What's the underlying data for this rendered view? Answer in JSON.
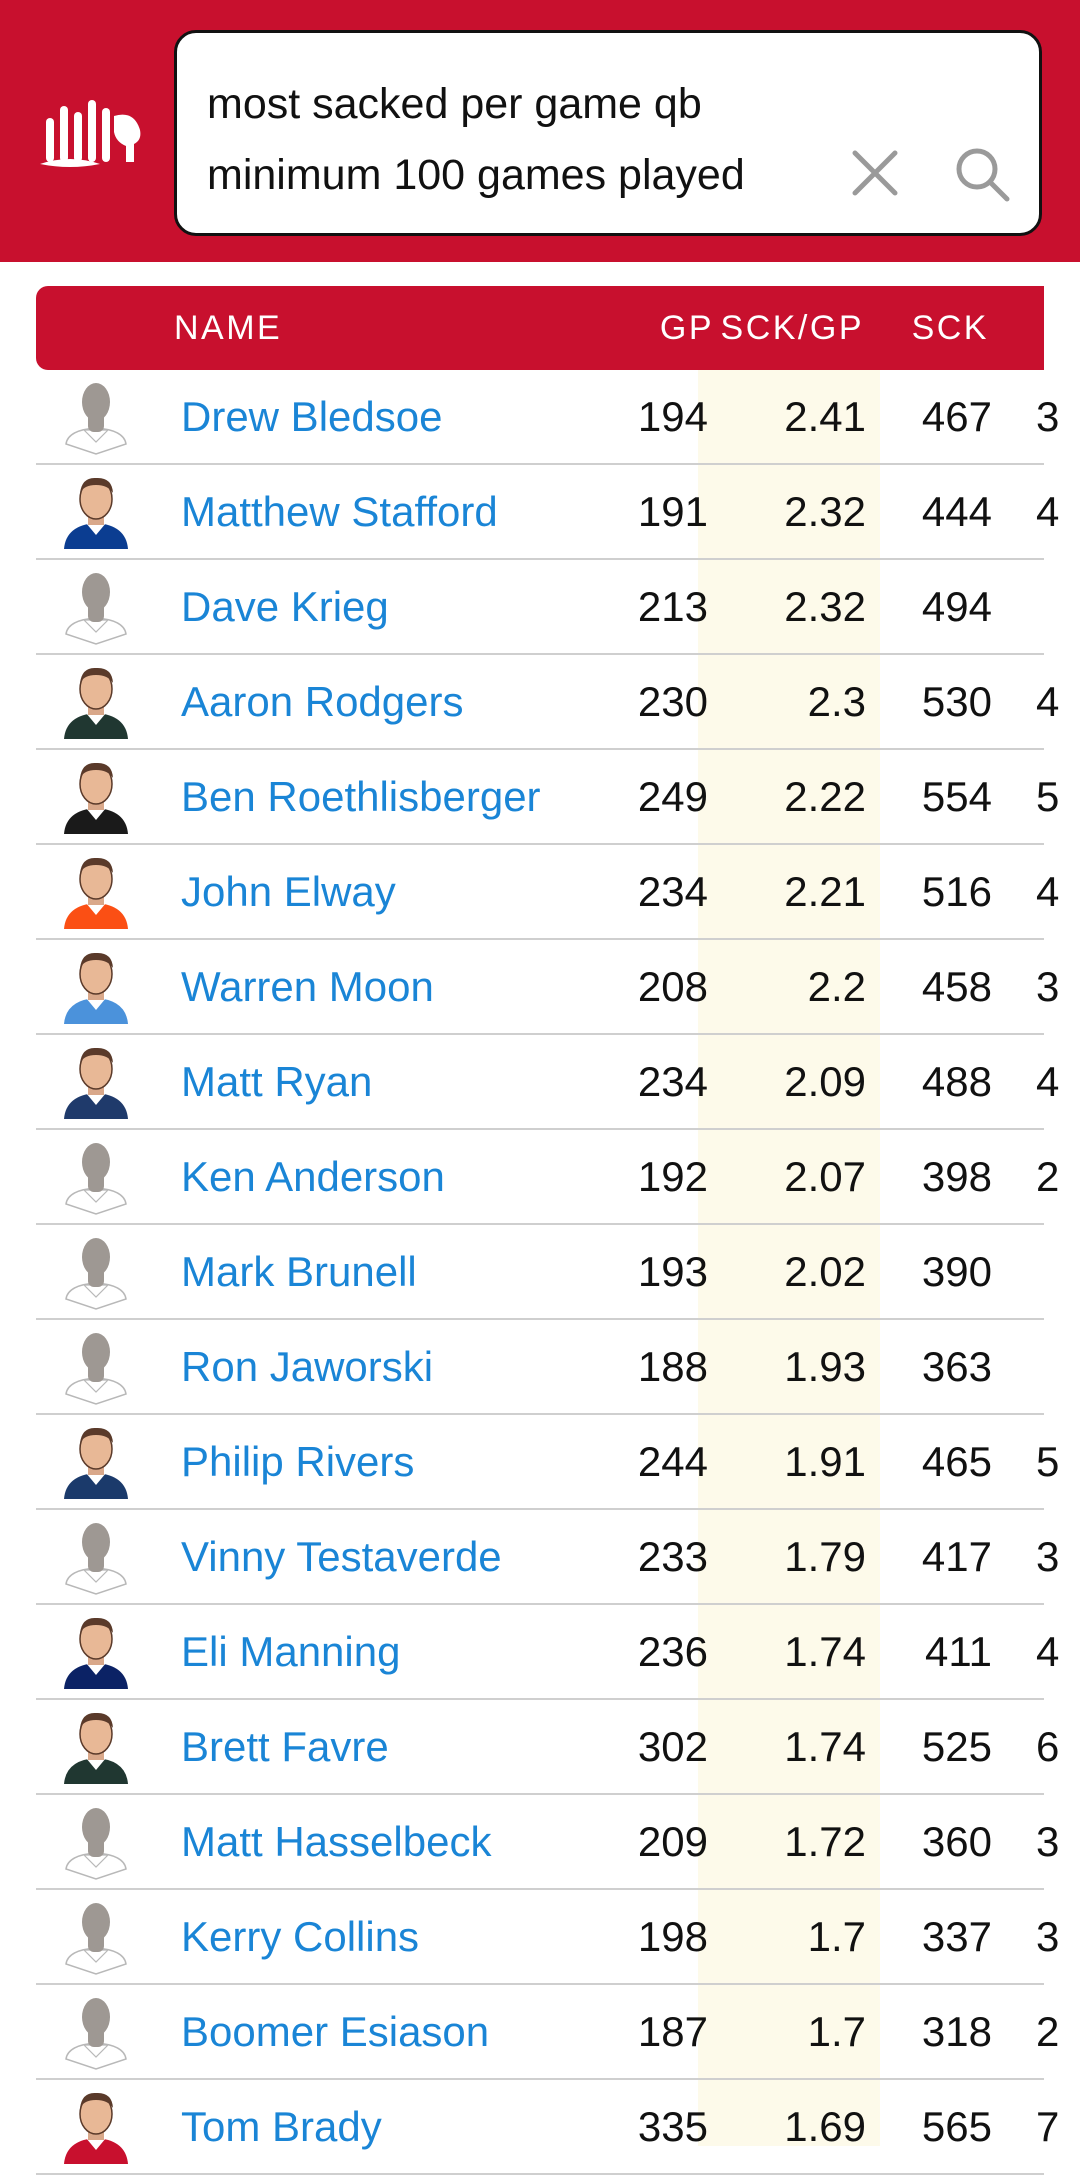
{
  "search": {
    "query": "most sacked per game qb\nminimum 100 games played"
  },
  "icons": {
    "logo": "statmuse-logo",
    "clear": "close-icon",
    "search": "search-icon"
  },
  "colors": {
    "brand": "#c8102e",
    "link": "#1a85d6",
    "highlight_column": "#fdfaea"
  },
  "table": {
    "columns": {
      "name": "NAME",
      "gp": "GP",
      "sck_gp": "SCK/GP",
      "sck": "SCK"
    },
    "rows": [
      {
        "name": "Drew Bledsoe",
        "gp": "194",
        "sck_gp": "2.41",
        "sck": "467",
        "extra": "3",
        "avatar": "silhouette"
      },
      {
        "name": "Matthew Stafford",
        "gp": "191",
        "sck_gp": "2.32",
        "sck": "444",
        "extra": "4",
        "avatar": "photo",
        "jersey": "#0b3d91"
      },
      {
        "name": "Dave Krieg",
        "gp": "213",
        "sck_gp": "2.32",
        "sck": "494",
        "extra": "",
        "avatar": "silhouette"
      },
      {
        "name": "Aaron Rodgers",
        "gp": "230",
        "sck_gp": "2.3",
        "sck": "530",
        "extra": "4",
        "avatar": "photo",
        "jersey": "#203731"
      },
      {
        "name": "Ben Roethlisberger",
        "gp": "249",
        "sck_gp": "2.22",
        "sck": "554",
        "extra": "5",
        "avatar": "photo",
        "jersey": "#1a1a1a"
      },
      {
        "name": "John Elway",
        "gp": "234",
        "sck_gp": "2.21",
        "sck": "516",
        "extra": "4",
        "avatar": "photo",
        "jersey": "#fb4f14"
      },
      {
        "name": "Warren Moon",
        "gp": "208",
        "sck_gp": "2.2",
        "sck": "458",
        "extra": "3",
        "avatar": "photo",
        "jersey": "#4b92db"
      },
      {
        "name": "Matt Ryan",
        "gp": "234",
        "sck_gp": "2.09",
        "sck": "488",
        "extra": "4",
        "avatar": "photo",
        "jersey": "#1f3a6b"
      },
      {
        "name": "Ken Anderson",
        "gp": "192",
        "sck_gp": "2.07",
        "sck": "398",
        "extra": "2",
        "avatar": "silhouette"
      },
      {
        "name": "Mark Brunell",
        "gp": "193",
        "sck_gp": "2.02",
        "sck": "390",
        "extra": "",
        "avatar": "silhouette"
      },
      {
        "name": "Ron Jaworski",
        "gp": "188",
        "sck_gp": "1.93",
        "sck": "363",
        "extra": "",
        "avatar": "silhouette"
      },
      {
        "name": "Philip Rivers",
        "gp": "244",
        "sck_gp": "1.91",
        "sck": "465",
        "extra": "5",
        "avatar": "photo",
        "jersey": "#1b3a6b"
      },
      {
        "name": "Vinny Testaverde",
        "gp": "233",
        "sck_gp": "1.79",
        "sck": "417",
        "extra": "3",
        "avatar": "silhouette"
      },
      {
        "name": "Eli Manning",
        "gp": "236",
        "sck_gp": "1.74",
        "sck": "411",
        "extra": "4",
        "avatar": "photo",
        "jersey": "#0b2265"
      },
      {
        "name": "Brett Favre",
        "gp": "302",
        "sck_gp": "1.74",
        "sck": "525",
        "extra": "6",
        "avatar": "photo",
        "jersey": "#203731"
      },
      {
        "name": "Matt Hasselbeck",
        "gp": "209",
        "sck_gp": "1.72",
        "sck": "360",
        "extra": "3",
        "avatar": "silhouette"
      },
      {
        "name": "Kerry Collins",
        "gp": "198",
        "sck_gp": "1.7",
        "sck": "337",
        "extra": "3",
        "avatar": "silhouette"
      },
      {
        "name": "Boomer Esiason",
        "gp": "187",
        "sck_gp": "1.7",
        "sck": "318",
        "extra": "2",
        "avatar": "silhouette"
      },
      {
        "name": "Tom Brady",
        "gp": "335",
        "sck_gp": "1.69",
        "sck": "565",
        "extra": "7",
        "avatar": "photo",
        "jersey": "#c8102e"
      }
    ]
  }
}
